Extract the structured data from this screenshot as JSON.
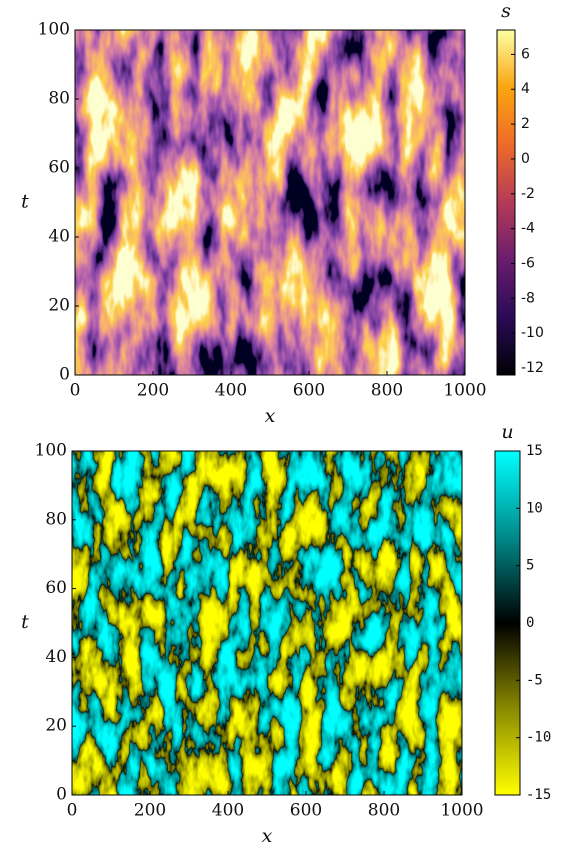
{
  "chart_data": [
    {
      "type": "heatmap",
      "xlabel": "x",
      "ylabel": "t",
      "colorbar_label": "s",
      "xlim": [
        0,
        1000
      ],
      "xticks": [
        0,
        200,
        400,
        600,
        800,
        1000
      ],
      "ylim": [
        0,
        100
      ],
      "yticks": [
        0,
        20,
        40,
        60,
        80,
        100
      ],
      "clim": [
        -12.4,
        7.4
      ],
      "cticks": [
        -12,
        -10,
        -8,
        -6,
        -4,
        -2,
        0,
        2,
        4,
        6
      ],
      "colormap": [
        "#000004",
        "#2a0b57",
        "#6a1c6e",
        "#b43b58",
        "#ee6a2a",
        "#fba40f",
        "#fcffa4"
      ]
    },
    {
      "type": "heatmap",
      "xlabel": "x",
      "ylabel": "t",
      "colorbar_label": "u",
      "xlim": [
        0,
        1000
      ],
      "xticks": [
        0,
        200,
        400,
        600,
        800,
        1000
      ],
      "ylim": [
        0,
        100
      ],
      "yticks": [
        0,
        20,
        40,
        60,
        80,
        100
      ],
      "clim": [
        -15,
        15
      ],
      "cticks": [
        -15,
        -10,
        -5,
        0,
        5,
        10,
        15
      ],
      "colormap": [
        "#ffff00",
        "#8a8a00",
        "#000000",
        "#008a8a",
        "#00ffff"
      ]
    }
  ]
}
